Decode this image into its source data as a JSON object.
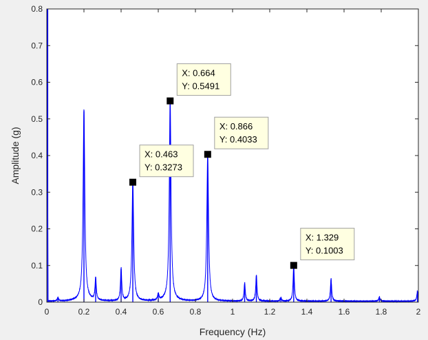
{
  "chart_data": {
    "type": "line",
    "xlabel": "Frequency (Hz)",
    "ylabel": "Amplitude (g)",
    "xlim": [
      0,
      2
    ],
    "ylim": [
      0,
      0.8
    ],
    "xticks": [
      0,
      0.2,
      0.4,
      0.6,
      0.8,
      1,
      1.2,
      1.4,
      1.6,
      1.8,
      2
    ],
    "xtick_labels": [
      "0",
      "0.2",
      "0.4",
      "0.6",
      "0.8",
      "1",
      "1.2",
      "1.4",
      "1.6",
      "1.8",
      "2"
    ],
    "yticks": [
      0,
      0.1,
      0.2,
      0.3,
      0.4,
      0.5,
      0.6,
      0.7,
      0.8
    ],
    "ytick_labels": [
      "0",
      "0.1",
      "0.2",
      "0.3",
      "0.4",
      "0.5",
      "0.6",
      "0.7",
      "0.8"
    ],
    "grid": false,
    "line_color": "#0000ff",
    "peaks": [
      {
        "x": 0.005,
        "y": 0.8
      },
      {
        "x": 0.06,
        "y": 0.01
      },
      {
        "x": 0.2,
        "y": 0.521
      },
      {
        "x": 0.263,
        "y": 0.062
      },
      {
        "x": 0.4,
        "y": 0.09
      },
      {
        "x": 0.463,
        "y": 0.3273
      },
      {
        "x": 0.6,
        "y": 0.018
      },
      {
        "x": 0.664,
        "y": 0.5491
      },
      {
        "x": 0.866,
        "y": 0.4033
      },
      {
        "x": 1.065,
        "y": 0.05
      },
      {
        "x": 1.128,
        "y": 0.072
      },
      {
        "x": 1.26,
        "y": 0.01
      },
      {
        "x": 1.329,
        "y": 0.1003
      },
      {
        "x": 1.53,
        "y": 0.062
      },
      {
        "x": 1.79,
        "y": 0.012
      },
      {
        "x": 1.995,
        "y": 0.028
      }
    ],
    "datatips": [
      {
        "x": 0.664,
        "y": 0.5491,
        "label_x": "X: 0.664",
        "label_y": "Y: 0.5491"
      },
      {
        "x": 0.866,
        "y": 0.4033,
        "label_x": "X: 0.866",
        "label_y": "Y: 0.4033"
      },
      {
        "x": 0.463,
        "y": 0.3273,
        "label_x": "X: 0.463",
        "label_y": "Y: 0.3273"
      },
      {
        "x": 1.329,
        "y": 0.1003,
        "label_x": "X: 1.329",
        "label_y": "Y: 0.1003"
      }
    ]
  }
}
